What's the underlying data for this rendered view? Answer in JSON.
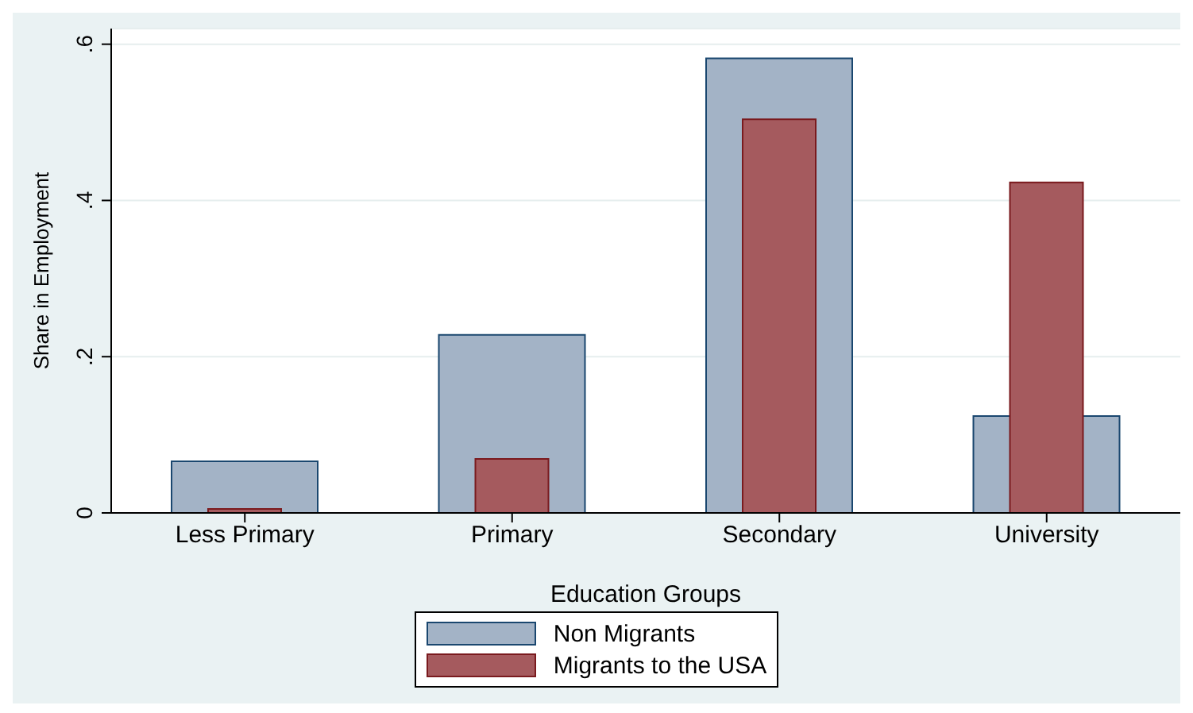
{
  "chart_data": {
    "type": "bar",
    "xlabel": "Education Groups",
    "ylabel": "Share in Employment",
    "categories": [
      "Less Primary",
      "Primary",
      "Secondary",
      "University"
    ],
    "series": [
      {
        "name": "Non Migrants",
        "color": "#a3b3c6",
        "values": [
          0.066,
          0.228,
          0.582,
          0.124
        ]
      },
      {
        "name": "Migrants to the USA",
        "color": "#a55a5e",
        "values": [
          0.005,
          0.069,
          0.504,
          0.423
        ]
      }
    ],
    "ylim": [
      0,
      0.62
    ],
    "yticks": [
      {
        "value": 0,
        "label": "0"
      },
      {
        "value": 0.2,
        "label": ".2"
      },
      {
        "value": 0.4,
        "label": ".4"
      },
      {
        "value": 0.6,
        "label": ".6"
      }
    ],
    "grid": "y",
    "legend": "bottom"
  }
}
